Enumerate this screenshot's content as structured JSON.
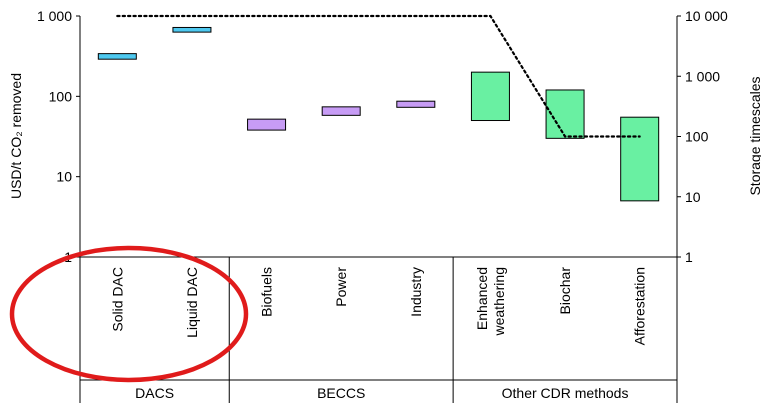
{
  "chart_data": {
    "type": "bar",
    "subtype": "floating range bars on logarithmic axes, with storage-timescale line",
    "ylabel_left": "USD/t CO₂ removed",
    "ylabel_right": "Storage timescales",
    "yscale": "log",
    "ylim_left": [
      1,
      1000
    ],
    "ylim_right": [
      1,
      10000
    ],
    "left_ticks": [
      "1",
      "10",
      "100",
      "1 000"
    ],
    "right_ticks": [
      "1",
      "10",
      "100",
      "1 000",
      "10 000"
    ],
    "grid": false,
    "legend": "none",
    "categories": [
      "Solid DAC",
      "Liquid DAC",
      "Biofuels",
      "Power",
      "Industry",
      "Enhanced weathering",
      "Biochar",
      "Afforestation"
    ],
    "groups": [
      {
        "name": "DACS",
        "categories": [
          "Solid DAC",
          "Liquid DAC"
        ]
      },
      {
        "name": "BECCS",
        "categories": [
          "Biofuels",
          "Power",
          "Industry"
        ]
      },
      {
        "name": "Other CDR methods",
        "categories": [
          "Enhanced weathering",
          "Biochar",
          "Afforestation"
        ]
      }
    ],
    "cost_ranges": [
      {
        "category": "Solid DAC",
        "low": 290,
        "high": 340,
        "color": "#4ec9f0"
      },
      {
        "category": "Liquid DAC",
        "low": 630,
        "high": 720,
        "color": "#4ec9f0"
      },
      {
        "category": "Biofuels",
        "low": 38,
        "high": 52,
        "color": "#c79cf5"
      },
      {
        "category": "Power",
        "low": 58,
        "high": 74,
        "color": "#c79cf5"
      },
      {
        "category": "Industry",
        "low": 73,
        "high": 87,
        "color": "#c79cf5"
      },
      {
        "category": "Enhanced weathering",
        "low": 50,
        "high": 200,
        "color": "#69f0a2"
      },
      {
        "category": "Biochar",
        "low": 30,
        "high": 120,
        "color": "#69f0a2"
      },
      {
        "category": "Afforestation",
        "low": 5,
        "high": 55,
        "color": "#69f0a2"
      }
    ],
    "storage_timescale_line": {
      "axis": "right",
      "style": "dotted",
      "color": "#000000",
      "points": [
        {
          "category": "Solid DAC",
          "value": 10000
        },
        {
          "category": "Liquid DAC",
          "value": 10000
        },
        {
          "category": "Biofuels",
          "value": 10000
        },
        {
          "category": "Power",
          "value": 10000
        },
        {
          "category": "Industry",
          "value": 10000
        },
        {
          "category": "Enhanced weathering",
          "value": 10000
        },
        {
          "category": "Biochar",
          "value": 100
        },
        {
          "category": "Afforestation",
          "value": 100
        }
      ]
    },
    "highlight": {
      "shape": "ellipse",
      "color": "#e01b1b",
      "target_group": "DACS"
    }
  }
}
